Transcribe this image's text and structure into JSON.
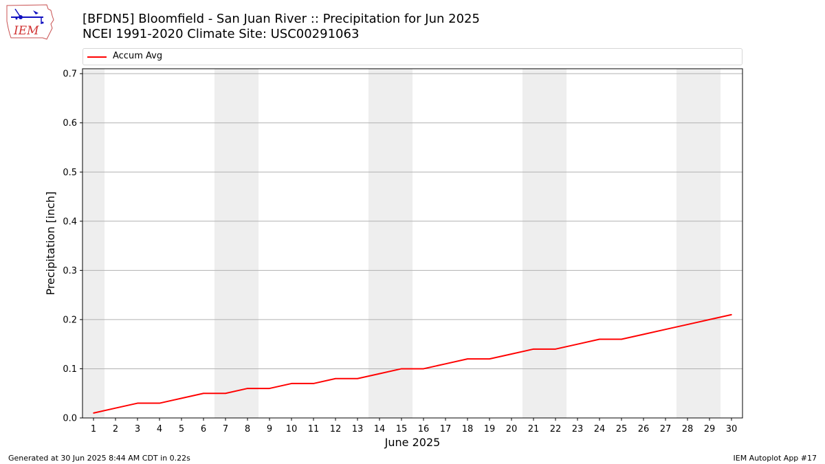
{
  "header": {
    "title_line1": "[BFDN5] Bloomfield - San Juan River :: Precipitation for Jun 2025",
    "title_line2": "NCEI 1991-2020 Climate Site: USC00291063"
  },
  "logo": {
    "text": "IEM",
    "icon": "iem-iowa-logo-icon"
  },
  "footer": {
    "generated": "Generated at 30 Jun 2025 8:44 AM CDT in 0.22s",
    "app": "IEM Autoplot App #17"
  },
  "colors": {
    "series": "#ff0000",
    "weekend_band": "#eeeeee",
    "grid": "#b0b0b0"
  },
  "chart_data": {
    "type": "line",
    "title": "[BFDN5] Bloomfield - San Juan River :: Precipitation for Jun 2025",
    "subtitle": "NCEI 1991-2020 Climate Site: USC00291063",
    "xlabel": "June 2025",
    "ylabel": "Precipitation [inch]",
    "x": [
      1,
      2,
      3,
      4,
      5,
      6,
      7,
      8,
      9,
      10,
      11,
      12,
      13,
      14,
      15,
      16,
      17,
      18,
      19,
      20,
      21,
      22,
      23,
      24,
      25,
      26,
      27,
      28,
      29,
      30
    ],
    "xlim": [
      0.5,
      30.5
    ],
    "ylim": [
      0,
      0.71
    ],
    "yticks": [
      0.0,
      0.1,
      0.2,
      0.3,
      0.4,
      0.5,
      0.6,
      0.7
    ],
    "ytick_labels": [
      "0.0",
      "0.1",
      "0.2",
      "0.3",
      "0.4",
      "0.5",
      "0.6",
      "0.7"
    ],
    "grid": "horizontal",
    "legend": "top",
    "weekend_days": [
      1,
      7,
      8,
      14,
      15,
      21,
      22,
      28,
      29
    ],
    "series": [
      {
        "name": "Accum Avg",
        "color": "#ff0000",
        "values": [
          0.01,
          0.02,
          0.03,
          0.03,
          0.04,
          0.05,
          0.05,
          0.06,
          0.06,
          0.07,
          0.07,
          0.08,
          0.08,
          0.09,
          0.1,
          0.1,
          0.11,
          0.12,
          0.12,
          0.13,
          0.14,
          0.14,
          0.15,
          0.16,
          0.16,
          0.17,
          0.18,
          0.19,
          0.2,
          0.21
        ]
      }
    ]
  }
}
